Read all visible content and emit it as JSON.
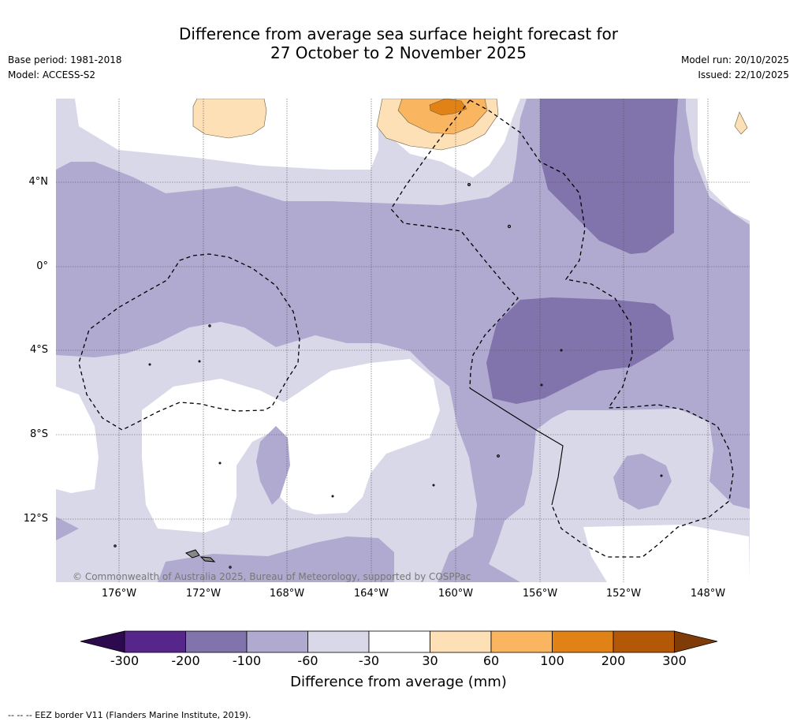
{
  "title": {
    "line1": "Difference from average sea surface height forecast for",
    "line2": "27 October to 2 November 2025"
  },
  "meta": {
    "base_period": "Base period: 1981-2018",
    "model": "Model: ACCESS-S2",
    "model_run": "Model run: 20/10/2025",
    "issued": "Issued: 22/10/2025"
  },
  "map": {
    "lat_labels": [
      "4°N",
      "0°",
      "4°S",
      "8°S",
      "12°S"
    ],
    "lon_labels": [
      "176°W",
      "172°W",
      "168°W",
      "164°W",
      "160°W",
      "156°W",
      "152°W",
      "148°W"
    ],
    "copyright": "© Commonwealth of Australia 2025, Bureau of Meteorology, supported by COSPPac"
  },
  "colorbar": {
    "title": "Difference from average (mm)",
    "ticks": [
      "-300",
      "-200",
      "-100",
      "-60",
      "-30",
      "30",
      "60",
      "100",
      "200",
      "300"
    ],
    "colors": [
      "#57268a",
      "#8173ab",
      "#b0a9d0",
      "#d9d8e9",
      "#ffffff",
      "#fde0b6",
      "#f9b55f",
      "#e08215",
      "#b35807"
    ],
    "under_color": "#2d0a4e",
    "over_color": "#7f3b08"
  },
  "footnote": "-- -- -- EEZ border V11 (Flanders Marine Institute, 2019)."
}
